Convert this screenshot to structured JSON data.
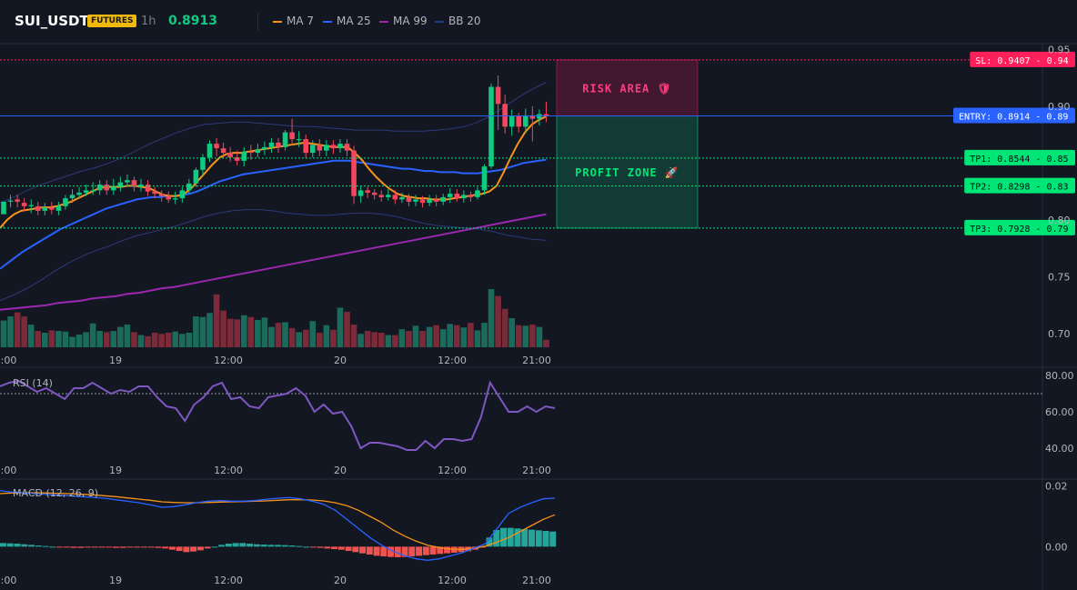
{
  "header": {
    "symbol": "SUI_USDT",
    "badge": "FUTURES",
    "timeframe": "1h",
    "price": "0.8913",
    "legend": [
      {
        "label": "MA 7",
        "color": "#f7931a"
      },
      {
        "label": "MA 25",
        "color": "#2962ff"
      },
      {
        "label": "MA 99",
        "color": "#9c27b0"
      },
      {
        "label": "BB 20",
        "color": "#1e3a8a"
      }
    ]
  },
  "colors": {
    "up": "#0ecb81",
    "down": "#f6465d",
    "up_volume": "#1b6b5c",
    "down_volume": "#7a2a38",
    "background": "#131722",
    "stop_loss": "#ff1f5a",
    "entry": "#2962ff",
    "take_profit": "#00e676",
    "rsi_line": "#7e57c2",
    "macd_line": "#2962ff",
    "signal_line": "#f7931a",
    "hist_up": "#26a69a",
    "hist_down": "#ef5350"
  },
  "annotations": {
    "risk_label": "RISK AREA 🛡",
    "profit_label": "PROFIT ZONE 🚀",
    "levels": [
      {
        "label": "SL: 0.9407 - 0.94",
        "value": 0.9407,
        "kind": "stop_loss"
      },
      {
        "label": "ENTRY: 0.8914 - 0.89",
        "value": 0.8914,
        "kind": "entry"
      },
      {
        "label": "TP1: 0.8544 - 0.85",
        "value": 0.8544,
        "kind": "take_profit"
      },
      {
        "label": "TP2: 0.8298 - 0.83",
        "value": 0.8298,
        "kind": "take_profit"
      },
      {
        "label": "TP3: 0.7928 - 0.79",
        "value": 0.7928,
        "kind": "take_profit"
      }
    ]
  },
  "chart_data": [
    {
      "type": "candlestick",
      "title": "SUI_USDT 1h",
      "x_ticks": [
        "2:00",
        "19",
        "12:00",
        "20",
        "12:00",
        "21:00"
      ],
      "y_ticks": [
        0.7,
        0.75,
        0.8,
        0.85,
        0.9,
        0.95
      ],
      "y_tick_labels": [
        "0.70",
        "0.75",
        "0.80",
        "",
        "0.90",
        "0.95"
      ],
      "ylim": [
        0.688,
        0.955
      ],
      "candles": [
        [
          0.805,
          0.816,
          0.795,
          0.793
        ],
        [
          0.816,
          0.817,
          0.822,
          0.811
        ],
        [
          0.818,
          0.816,
          0.822,
          0.811
        ],
        [
          0.815,
          0.812,
          0.819,
          0.808
        ],
        [
          0.812,
          0.813,
          0.818,
          0.806
        ],
        [
          0.812,
          0.808,
          0.816,
          0.804
        ],
        [
          0.808,
          0.811,
          0.815,
          0.804
        ],
        [
          0.811,
          0.809,
          0.816,
          0.805
        ],
        [
          0.808,
          0.812,
          0.816,
          0.804
        ],
        [
          0.812,
          0.819,
          0.822,
          0.809
        ],
        [
          0.819,
          0.822,
          0.827,
          0.815
        ],
        [
          0.822,
          0.824,
          0.829,
          0.819
        ],
        [
          0.824,
          0.826,
          0.831,
          0.821
        ],
        [
          0.826,
          0.826,
          0.833,
          0.822
        ],
        [
          0.826,
          0.831,
          0.835,
          0.822
        ],
        [
          0.831,
          0.826,
          0.835,
          0.822
        ],
        [
          0.826,
          0.829,
          0.836,
          0.822
        ],
        [
          0.829,
          0.833,
          0.838,
          0.825
        ],
        [
          0.833,
          0.835,
          0.84,
          0.829
        ],
        [
          0.835,
          0.829,
          0.838,
          0.825
        ],
        [
          0.829,
          0.831,
          0.836,
          0.825
        ],
        [
          0.831,
          0.825,
          0.835,
          0.821
        ],
        [
          0.825,
          0.823,
          0.829,
          0.819
        ],
        [
          0.823,
          0.821,
          0.826,
          0.816
        ],
        [
          0.821,
          0.818,
          0.825,
          0.815
        ],
        [
          0.818,
          0.819,
          0.825,
          0.814
        ],
        [
          0.819,
          0.826,
          0.829,
          0.815
        ],
        [
          0.826,
          0.832,
          0.836,
          0.823
        ],
        [
          0.832,
          0.844,
          0.846,
          0.829
        ],
        [
          0.844,
          0.855,
          0.858,
          0.839
        ],
        [
          0.855,
          0.867,
          0.87,
          0.851
        ],
        [
          0.867,
          0.863,
          0.872,
          0.856
        ],
        [
          0.863,
          0.859,
          0.868,
          0.854
        ],
        [
          0.859,
          0.855,
          0.864,
          0.851
        ],
        [
          0.855,
          0.852,
          0.861,
          0.848
        ],
        [
          0.852,
          0.86,
          0.864,
          0.847
        ],
        [
          0.86,
          0.859,
          0.866,
          0.853
        ],
        [
          0.859,
          0.862,
          0.867,
          0.855
        ],
        [
          0.862,
          0.864,
          0.869,
          0.857
        ],
        [
          0.864,
          0.868,
          0.872,
          0.859
        ],
        [
          0.868,
          0.864,
          0.872,
          0.859
        ],
        [
          0.864,
          0.877,
          0.879,
          0.861
        ],
        [
          0.877,
          0.871,
          0.889,
          0.866
        ],
        [
          0.871,
          0.871,
          0.878,
          0.864
        ],
        [
          0.871,
          0.859,
          0.875,
          0.854
        ],
        [
          0.859,
          0.866,
          0.87,
          0.855
        ],
        [
          0.866,
          0.861,
          0.871,
          0.856
        ],
        [
          0.861,
          0.866,
          0.87,
          0.856
        ],
        [
          0.866,
          0.863,
          0.87,
          0.858
        ],
        [
          0.863,
          0.867,
          0.871,
          0.859
        ],
        [
          0.867,
          0.861,
          0.871,
          0.856
        ],
        [
          0.861,
          0.821,
          0.865,
          0.814
        ],
        [
          0.821,
          0.826,
          0.83,
          0.815
        ],
        [
          0.826,
          0.824,
          0.829,
          0.819
        ],
        [
          0.824,
          0.822,
          0.827,
          0.818
        ],
        [
          0.822,
          0.82,
          0.826,
          0.816
        ],
        [
          0.82,
          0.822,
          0.827,
          0.817
        ],
        [
          0.822,
          0.818,
          0.826,
          0.814
        ],
        [
          0.818,
          0.82,
          0.824,
          0.815
        ],
        [
          0.82,
          0.816,
          0.823,
          0.812
        ],
        [
          0.816,
          0.818,
          0.822,
          0.812
        ],
        [
          0.818,
          0.815,
          0.821,
          0.811
        ],
        [
          0.815,
          0.818,
          0.822,
          0.812
        ],
        [
          0.818,
          0.816,
          0.822,
          0.812
        ],
        [
          0.816,
          0.82,
          0.823,
          0.813
        ],
        [
          0.82,
          0.823,
          0.828,
          0.815
        ],
        [
          0.823,
          0.819,
          0.827,
          0.816
        ],
        [
          0.819,
          0.822,
          0.826,
          0.815
        ],
        [
          0.822,
          0.82,
          0.825,
          0.816
        ],
        [
          0.82,
          0.826,
          0.829,
          0.818
        ],
        [
          0.826,
          0.847,
          0.849,
          0.822
        ],
        [
          0.847,
          0.917,
          0.92,
          0.845
        ],
        [
          0.917,
          0.902,
          0.927,
          0.879
        ],
        [
          0.902,
          0.882,
          0.91,
          0.876
        ],
        [
          0.882,
          0.891,
          0.897,
          0.874
        ],
        [
          0.891,
          0.882,
          0.894,
          0.877
        ],
        [
          0.882,
          0.892,
          0.898,
          0.876
        ],
        [
          0.892,
          0.889,
          0.9,
          0.869
        ],
        [
          0.889,
          0.893,
          0.897,
          0.883
        ],
        [
          0.893,
          0.891,
          0.904,
          0.886
        ]
      ],
      "volume": [
        0.46,
        0.53,
        0.6,
        0.53,
        0.39,
        0.28,
        0.25,
        0.29,
        0.28,
        0.27,
        0.18,
        0.22,
        0.26,
        0.41,
        0.28,
        0.26,
        0.28,
        0.35,
        0.39,
        0.26,
        0.21,
        0.19,
        0.25,
        0.23,
        0.25,
        0.27,
        0.23,
        0.25,
        0.53,
        0.52,
        0.59,
        0.91,
        0.63,
        0.49,
        0.48,
        0.55,
        0.52,
        0.47,
        0.51,
        0.35,
        0.42,
        0.43,
        0.33,
        0.26,
        0.3,
        0.45,
        0.25,
        0.38,
        0.3,
        0.68,
        0.61,
        0.39,
        0.23,
        0.28,
        0.26,
        0.25,
        0.21,
        0.21,
        0.31,
        0.28,
        0.37,
        0.28,
        0.35,
        0.38,
        0.31,
        0.4,
        0.38,
        0.34,
        0.42,
        0.29,
        0.42,
        1.0,
        0.88,
        0.66,
        0.5,
        0.38,
        0.37,
        0.39,
        0.35,
        0.13
      ],
      "ma7": [
        0.793,
        0.8,
        0.805,
        0.808,
        0.809,
        0.81,
        0.811,
        0.811,
        0.812,
        0.814,
        0.816,
        0.819,
        0.822,
        0.825,
        0.828,
        0.829,
        0.829,
        0.829,
        0.83,
        0.83,
        0.829,
        0.828,
        0.825,
        0.822,
        0.821,
        0.821,
        0.823,
        0.828,
        0.835,
        0.842,
        0.849,
        0.855,
        0.858,
        0.859,
        0.859,
        0.86,
        0.861,
        0.862,
        0.863,
        0.864,
        0.865,
        0.866,
        0.867,
        0.868,
        0.867,
        0.866,
        0.865,
        0.864,
        0.864,
        0.864,
        0.859,
        0.853,
        0.845,
        0.838,
        0.832,
        0.827,
        0.823,
        0.821,
        0.82,
        0.819,
        0.819,
        0.818,
        0.818,
        0.818,
        0.819,
        0.82,
        0.821,
        0.822,
        0.823,
        0.825,
        0.83,
        0.842,
        0.855,
        0.867,
        0.877,
        0.884,
        0.888,
        0.891
      ],
      "ma25": [
        0.757,
        0.762,
        0.767,
        0.772,
        0.776,
        0.78,
        0.784,
        0.788,
        0.792,
        0.795,
        0.798,
        0.801,
        0.804,
        0.807,
        0.81,
        0.812,
        0.814,
        0.816,
        0.818,
        0.819,
        0.82,
        0.82,
        0.821,
        0.821,
        0.822,
        0.823,
        0.825,
        0.828,
        0.831,
        0.834,
        0.836,
        0.838,
        0.84,
        0.841,
        0.842,
        0.843,
        0.844,
        0.845,
        0.846,
        0.847,
        0.848,
        0.849,
        0.85,
        0.851,
        0.852,
        0.852,
        0.852,
        0.851,
        0.85,
        0.849,
        0.848,
        0.847,
        0.846,
        0.845,
        0.845,
        0.844,
        0.843,
        0.843,
        0.842,
        0.842,
        0.842,
        0.841,
        0.841,
        0.841,
        0.842,
        0.843,
        0.844,
        0.846,
        0.848,
        0.85,
        0.851,
        0.852,
        0.853
      ],
      "ma99": [
        0.721,
        0.722,
        0.723,
        0.724,
        0.725,
        0.727,
        0.728,
        0.729,
        0.731,
        0.732,
        0.733,
        0.735,
        0.736,
        0.738,
        0.74,
        0.741,
        0.743,
        0.745,
        0.747,
        0.749,
        0.751,
        0.753,
        0.755,
        0.757,
        0.759,
        0.761,
        0.763,
        0.765,
        0.767,
        0.769,
        0.771,
        0.773,
        0.775,
        0.777,
        0.779,
        0.781,
        0.783,
        0.785,
        0.787,
        0.789,
        0.791,
        0.793,
        0.795,
        0.797,
        0.799,
        0.801,
        0.803,
        0.805
      ],
      "bb_upper": [
        0.815,
        0.82,
        0.826,
        0.831,
        0.835,
        0.839,
        0.843,
        0.846,
        0.85,
        0.855,
        0.861,
        0.867,
        0.872,
        0.877,
        0.881,
        0.884,
        0.885,
        0.886,
        0.886,
        0.885,
        0.884,
        0.883,
        0.882,
        0.882,
        0.881,
        0.88,
        0.879,
        0.879,
        0.879,
        0.878,
        0.878,
        0.878,
        0.879,
        0.88,
        0.882,
        0.886,
        0.892,
        0.9,
        0.908,
        0.915,
        0.921
      ],
      "bb_lower": [
        0.729,
        0.734,
        0.74,
        0.747,
        0.755,
        0.762,
        0.768,
        0.773,
        0.777,
        0.782,
        0.786,
        0.789,
        0.792,
        0.795,
        0.799,
        0.803,
        0.806,
        0.808,
        0.809,
        0.809,
        0.808,
        0.806,
        0.805,
        0.804,
        0.804,
        0.805,
        0.806,
        0.806,
        0.805,
        0.803,
        0.8,
        0.797,
        0.795,
        0.794,
        0.793,
        0.792,
        0.79,
        0.787,
        0.785,
        0.783,
        0.782
      ]
    },
    {
      "type": "line",
      "title": "RSI (14)",
      "y_ticks": [
        40,
        60,
        80
      ],
      "y_tick_labels": [
        "40.00",
        "60.00",
        "80.00"
      ],
      "ylim": [
        34,
        84
      ],
      "reference_line": 70,
      "series": [
        {
          "name": "RSI (14)",
          "values": [
            74,
            76,
            77,
            74,
            71,
            73,
            70,
            67,
            73,
            73,
            76,
            73,
            70,
            72,
            71,
            74,
            74,
            68,
            63,
            62,
            55,
            64,
            68,
            74,
            76,
            67,
            68,
            63,
            62,
            68,
            69,
            70,
            73,
            69,
            60,
            64,
            59,
            60,
            52,
            40,
            43,
            43,
            42,
            41,
            39,
            39,
            44,
            40,
            45,
            45,
            44,
            45,
            57,
            76,
            68,
            60,
            60,
            63,
            60,
            63,
            62
          ]
        }
      ]
    },
    {
      "type": "bar+line",
      "title": "MACD (12, 26, 9)",
      "y_ticks": [
        0.0,
        0.02
      ],
      "y_tick_labels": [
        "0.00",
        "0.02"
      ],
      "ylim": [
        -0.008,
        0.022
      ],
      "series": [
        {
          "name": "MACD",
          "values": [
            0.0185,
            0.018,
            0.0178,
            0.0175,
            0.0172,
            0.017,
            0.0168,
            0.0165,
            0.0163,
            0.016,
            0.0155,
            0.015,
            0.0145,
            0.0138,
            0.013,
            0.0132,
            0.0138,
            0.0145,
            0.015,
            0.0152,
            0.015,
            0.015,
            0.0152,
            0.0156,
            0.016,
            0.0162,
            0.0158,
            0.015,
            0.014,
            0.012,
            0.009,
            0.006,
            0.003,
            0.0005,
            -0.0015,
            -0.003,
            -0.004,
            -0.0045,
            -0.004,
            -0.003,
            -0.002,
            -0.0005,
            0.001,
            0.006,
            0.011,
            0.013,
            0.0145,
            0.0158,
            0.016
          ]
        },
        {
          "name": "Signal",
          "values": [
            0.0175,
            0.0177,
            0.0178,
            0.0178,
            0.0177,
            0.0176,
            0.0175,
            0.0173,
            0.0171,
            0.0168,
            0.0165,
            0.0161,
            0.0157,
            0.0153,
            0.0148,
            0.0146,
            0.0145,
            0.0145,
            0.0146,
            0.0147,
            0.0148,
            0.0149,
            0.015,
            0.0151,
            0.0153,
            0.0155,
            0.0155,
            0.0154,
            0.0151,
            0.0145,
            0.0135,
            0.012,
            0.01,
            0.008,
            0.0055,
            0.0035,
            0.0018,
            0.0005,
            -0.0003,
            -0.0008,
            -0.0009,
            -0.0005,
            0.0002,
            0.0015,
            0.003,
            0.005,
            0.007,
            0.009,
            0.0105
          ]
        },
        {
          "name": "Histogram",
          "values": [
            0.0012,
            0.0011,
            0.001,
            0.0008,
            0.0006,
            0.0004,
            0.0002,
            0.0,
            -0.0002,
            -0.0003,
            -0.0004,
            -0.0004,
            -0.0003,
            -0.0002,
            -0.0002,
            -0.0003,
            -0.0004,
            -0.0004,
            -0.0003,
            -0.0002,
            -0.0002,
            -0.0003,
            -0.0004,
            -0.0006,
            -0.001,
            -0.0014,
            -0.0018,
            -0.0016,
            -0.0012,
            -0.0006,
            0.0,
            0.0006,
            0.001,
            0.0012,
            0.0012,
            0.001,
            0.0008,
            0.0007,
            0.0006,
            0.0006,
            0.0005,
            0.0004,
            0.0002,
            0.0,
            -0.0002,
            -0.0004,
            -0.0006,
            -0.0008,
            -0.001,
            -0.0014,
            -0.0018,
            -0.0022,
            -0.0026,
            -0.003,
            -0.0032,
            -0.0034,
            -0.0035,
            -0.0034,
            -0.0032,
            -0.003,
            -0.0028,
            -0.0026,
            -0.0024,
            -0.0022,
            -0.002,
            -0.0018,
            -0.0015,
            -0.001,
            -0.0002,
            0.003,
            0.0055,
            0.0062,
            0.0062,
            0.006,
            0.0058,
            0.0056,
            0.0054,
            0.0052,
            0.005
          ]
        }
      ]
    }
  ]
}
